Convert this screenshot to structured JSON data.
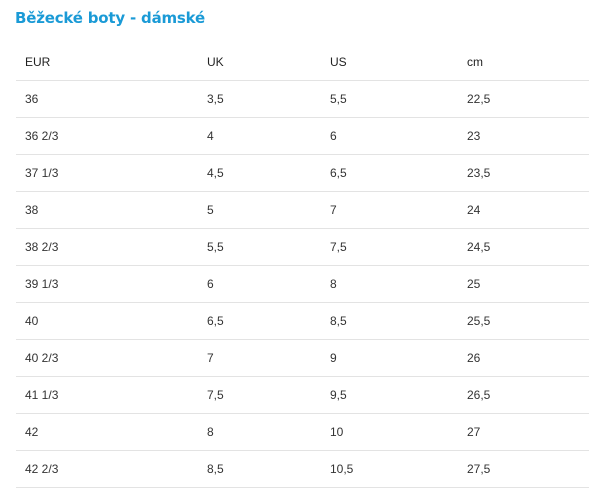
{
  "page": {
    "title": "Běžecké boty - dámské",
    "accent_color": "#1a9ad6"
  },
  "table": {
    "headers": [
      "EUR",
      "UK",
      "US",
      "cm"
    ],
    "rows": [
      [
        "36",
        "3,5",
        "5,5",
        "22,5"
      ],
      [
        "36 2/3",
        "4",
        "6",
        "23"
      ],
      [
        "37 1/3",
        "4,5",
        "6,5",
        "23,5"
      ],
      [
        "38",
        "5",
        "7",
        "24"
      ],
      [
        "38 2/3",
        "5,5",
        "7,5",
        "24,5"
      ],
      [
        "39 1/3",
        "6",
        "8",
        "25"
      ],
      [
        "40",
        "6,5",
        "8,5",
        "25,5"
      ],
      [
        "40 2/3",
        "7",
        "9",
        "26"
      ],
      [
        "41 1/3",
        "7,5",
        "9,5",
        "26,5"
      ],
      [
        "42",
        "8",
        "10",
        "27"
      ],
      [
        "42 2/3",
        "8,5",
        "10,5",
        "27,5"
      ]
    ]
  }
}
